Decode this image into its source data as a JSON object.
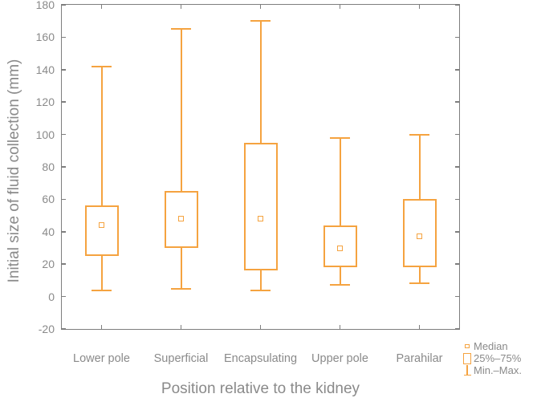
{
  "chart_data": {
    "type": "boxplot",
    "title": "",
    "xlabel": "Position relative to the kidney",
    "ylabel": "Initial size of fluid collection (mm)",
    "categories": [
      "Lower pole",
      "Superficial",
      "Encapsulating",
      "Upper pole",
      "Parahilar"
    ],
    "ylim": [
      -20,
      180
    ],
    "ytick_step": 20,
    "grid": false,
    "series": [
      {
        "category": "Lower pole",
        "min": 4,
        "q1": 25,
        "median": 44,
        "q3": 56,
        "max": 142
      },
      {
        "category": "Superficial",
        "min": 5,
        "q1": 30,
        "median": 48,
        "q3": 65,
        "max": 165
      },
      {
        "category": "Encapsulating",
        "min": 4,
        "q1": 16,
        "median": 48,
        "q3": 95,
        "max": 170
      },
      {
        "category": "Upper pole",
        "min": 7,
        "q1": 18,
        "median": 30,
        "q3": 44,
        "max": 98
      },
      {
        "category": "Parahilar",
        "min": 8,
        "q1": 18,
        "median": 37,
        "q3": 60,
        "max": 100
      }
    ],
    "legend": {
      "position": "bottom-right",
      "items": [
        {
          "icon": "median-square-icon",
          "label": "Median"
        },
        {
          "icon": "iqr-box-icon",
          "label": "25%–75%"
        },
        {
          "icon": "min-max-whisker-icon",
          "label": "Min.–Max."
        }
      ]
    },
    "colors": {
      "box": "#F5A340",
      "axis": "#7E7E7E",
      "text": "#8A8A8A"
    }
  }
}
